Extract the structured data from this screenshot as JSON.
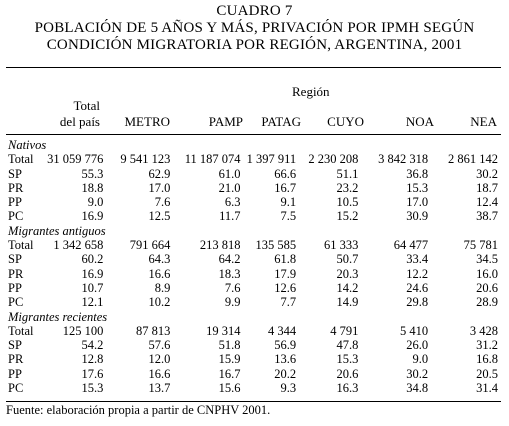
{
  "title": {
    "line1": "CUADRO 7",
    "line2": "POBLACIÓN DE 5 AÑOS Y MÁS, PRIVACIÓN POR IPMH SEGÚN",
    "line3": "CONDICIÓN MIGRATORIA POR REGIÓN, ARGENTINA, 2001"
  },
  "header": {
    "region_label": "Región",
    "total_line1": "Total",
    "total_line2": "del país",
    "columns": [
      "METRO",
      "PAMP",
      "PATAG",
      "CUYO",
      "NOA",
      "NEA"
    ]
  },
  "sections": [
    {
      "name": "Nativos",
      "rows": [
        {
          "label": "Total",
          "values": [
            "31 059 776",
            "9 541 123",
            "11 187 074",
            "1 397 911",
            "2 230 208",
            "3 842 318",
            "2 861 142"
          ]
        },
        {
          "label": "SP",
          "values": [
            "55.3",
            "62.9",
            "61.0",
            "66.6",
            "51.1",
            "36.8",
            "30.2"
          ]
        },
        {
          "label": "PR",
          "values": [
            "18.8",
            "17.0",
            "21.0",
            "16.7",
            "23.2",
            "15.3",
            "18.7"
          ]
        },
        {
          "label": "PP",
          "values": [
            "9.0",
            "7.6",
            "6.3",
            "9.1",
            "10.5",
            "17.0",
            "12.4"
          ]
        },
        {
          "label": "PC",
          "values": [
            "16.9",
            "12.5",
            "11.7",
            "7.5",
            "15.2",
            "30.9",
            "38.7"
          ]
        }
      ]
    },
    {
      "name": "Migrantes antiguos",
      "rows": [
        {
          "label": "Total",
          "values": [
            "1 342 658",
            "791 664",
            "213 818",
            "135 585",
            "61 333",
            "64 477",
            "75 781"
          ]
        },
        {
          "label": "SP",
          "values": [
            "60.2",
            "64.3",
            "64.2",
            "61.8",
            "50.7",
            "33.4",
            "34.5"
          ]
        },
        {
          "label": "PR",
          "values": [
            "16.9",
            "16.6",
            "18.3",
            "17.9",
            "20.3",
            "12.2",
            "16.0"
          ]
        },
        {
          "label": "PP",
          "values": [
            "10.7",
            "8.9",
            "7.6",
            "12.6",
            "14.2",
            "24.6",
            "20.6"
          ]
        },
        {
          "label": "PC",
          "values": [
            "12.1",
            "10.2",
            "9.9",
            "7.7",
            "14.9",
            "29.8",
            "28.9"
          ]
        }
      ]
    },
    {
      "name": "Migrantes recientes",
      "rows": [
        {
          "label": "Total",
          "values": [
            "125 100",
            "87 813",
            "19 314",
            "4 344",
            "4 791",
            "5 410",
            "3 428"
          ]
        },
        {
          "label": "SP",
          "values": [
            "54.2",
            "57.6",
            "51.8",
            "56.9",
            "47.8",
            "26.0",
            "31.2"
          ]
        },
        {
          "label": "PR",
          "values": [
            "12.8",
            "12.0",
            "15.9",
            "13.6",
            "15.3",
            "9.0",
            "16.8"
          ]
        },
        {
          "label": "PP",
          "values": [
            "17.6",
            "16.6",
            "16.7",
            "20.2",
            "20.6",
            "30.2",
            "20.5"
          ]
        },
        {
          "label": "PC",
          "values": [
            "15.3",
            "13.7",
            "15.6",
            "9.3",
            "16.3",
            "34.8",
            "31.4"
          ]
        }
      ]
    }
  ],
  "source": "Fuente: elaboración propia a partir de CNPHV 2001."
}
